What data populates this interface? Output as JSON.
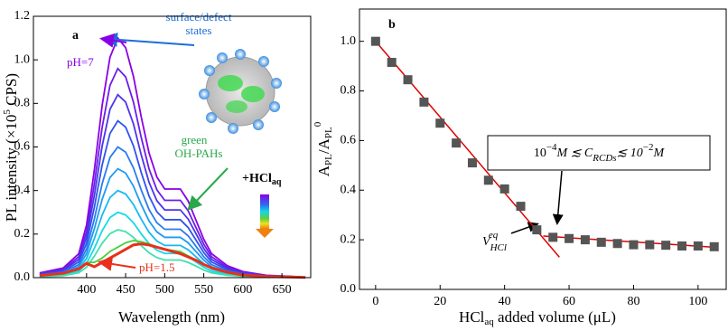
{
  "chart_data": [
    {
      "type": "line",
      "panel_label": "a",
      "ylabel": {
        "text": "PL intensity (×10",
        "sup": "5",
        "tail": " CPS)"
      },
      "xlabel": "Wavelength (nm)",
      "xlim": [
        332,
        688
      ],
      "xticks": [
        400,
        450,
        500,
        550,
        600,
        650
      ],
      "ylim": [
        0,
        1.2
      ],
      "yticks": [
        {
          "value": 0,
          "label": "0.0"
        },
        0.2,
        0.4,
        0.6,
        0.8,
        {
          "value": 1,
          "label": "1.0"
        },
        1.2
      ],
      "annotations": {
        "surface1": "surface/defect",
        "surface2": "states",
        "ph7": "pH=7",
        "green1": "green",
        "green2": "OH-PAHs",
        "hcl": "+HCl",
        "hcl_sub": "aq",
        "ph15": "pH=1.5"
      },
      "x": [
        340,
        370,
        390,
        400,
        410,
        420,
        430,
        440,
        450,
        460,
        470,
        480,
        490,
        500,
        510,
        520,
        530,
        540,
        550,
        560,
        580,
        600,
        630,
        660,
        680
      ],
      "series": [
        {
          "color": "#8a00e6",
          "values": [
            0.022,
            0.044,
            0.11,
            0.242,
            0.495,
            0.792,
            1.012,
            1.1,
            1.056,
            0.924,
            0.737,
            0.572,
            0.462,
            0.407,
            0.407,
            0.407,
            0.352,
            0.264,
            0.176,
            0.11,
            0.055,
            0.028,
            0.011,
            0.006,
            0.002
          ]
        },
        {
          "color": "#6d1de8",
          "values": [
            0.019,
            0.038,
            0.096,
            0.211,
            0.432,
            0.691,
            0.883,
            0.96,
            0.922,
            0.806,
            0.643,
            0.499,
            0.403,
            0.355,
            0.355,
            0.355,
            0.307,
            0.23,
            0.154,
            0.096,
            0.048,
            0.024,
            0.01,
            0.005,
            0.002
          ]
        },
        {
          "color": "#4c34ea",
          "values": [
            0.017,
            0.034,
            0.084,
            0.185,
            0.378,
            0.605,
            0.773,
            0.84,
            0.806,
            0.706,
            0.563,
            0.437,
            0.353,
            0.311,
            0.311,
            0.311,
            0.269,
            0.202,
            0.134,
            0.084,
            0.042,
            0.021,
            0.008,
            0.004,
            0.002
          ]
        },
        {
          "color": "#2f52ee",
          "values": [
            0.014,
            0.029,
            0.072,
            0.158,
            0.324,
            0.518,
            0.662,
            0.72,
            0.691,
            0.605,
            0.482,
            0.374,
            0.302,
            0.266,
            0.266,
            0.266,
            0.23,
            0.173,
            0.115,
            0.072,
            0.036,
            0.018,
            0.007,
            0.004,
            0.001
          ]
        },
        {
          "color": "#2a7bee",
          "values": [
            0.012,
            0.024,
            0.06,
            0.132,
            0.27,
            0.432,
            0.552,
            0.6,
            0.576,
            0.504,
            0.402,
            0.312,
            0.252,
            0.222,
            0.222,
            0.222,
            0.192,
            0.144,
            0.096,
            0.06,
            0.03,
            0.015,
            0.006,
            0.003,
            0.001
          ]
        },
        {
          "color": "#1f9af2",
          "values": [
            0.01,
            0.02,
            0.05,
            0.11,
            0.225,
            0.36,
            0.46,
            0.5,
            0.48,
            0.42,
            0.335,
            0.26,
            0.21,
            0.185,
            0.185,
            0.185,
            0.16,
            0.12,
            0.08,
            0.05,
            0.025,
            0.013,
            0.005,
            0.003,
            0.001
          ]
        },
        {
          "color": "#17b9ef",
          "values": [
            0.008,
            0.016,
            0.04,
            0.088,
            0.18,
            0.288,
            0.368,
            0.4,
            0.384,
            0.336,
            0.268,
            0.208,
            0.168,
            0.148,
            0.148,
            0.148,
            0.128,
            0.096,
            0.064,
            0.04,
            0.02,
            0.01,
            0.004,
            0.002,
            0.001
          ]
        },
        {
          "color": "#16d8e4",
          "values": [
            0.006,
            0.012,
            0.03,
            0.066,
            0.135,
            0.216,
            0.276,
            0.3,
            0.288,
            0.252,
            0.201,
            0.156,
            0.126,
            0.111,
            0.111,
            0.111,
            0.096,
            0.072,
            0.048,
            0.03,
            0.015,
            0.008,
            0.003,
            0.002,
            0.001
          ]
        },
        {
          "color": "#3fe0b0",
          "values": [
            0.004,
            0.009,
            0.022,
            0.048,
            0.099,
            0.158,
            0.202,
            0.22,
            0.211,
            0.185,
            0.147,
            0.114,
            0.092,
            0.081,
            0.081,
            0.081,
            0.07,
            0.053,
            0.035,
            0.022,
            0.011,
            0.006,
            0.002,
            0.001,
            0
          ]
        },
        {
          "color": "#4ccd3c",
          "values": [
            0.01,
            0.02,
            0.04,
            0.07,
            0.07,
            0.09,
            0.12,
            0.14,
            0.16,
            0.17,
            0.165,
            0.155,
            0.14,
            0.13,
            0.125,
            0.12,
            0.1,
            0.08,
            0.06,
            0.045,
            0.025,
            0.012,
            0.005,
            0.003,
            0.001
          ]
        },
        {
          "color": "#e8301a",
          "values": [
            0.01,
            0.02,
            0.04,
            0.065,
            0.05,
            0.07,
            0.09,
            0.11,
            0.13,
            0.15,
            0.155,
            0.15,
            0.14,
            0.13,
            0.12,
            0.11,
            0.095,
            0.08,
            0.06,
            0.045,
            0.025,
            0.012,
            0.005,
            0.003,
            0.001
          ]
        }
      ]
    },
    {
      "type": "scatter",
      "panel_label": "b",
      "ylabel": {
        "a": "A",
        "sub1": "PL",
        "slash": "/A",
        "sub2": "PL",
        "sup": "0"
      },
      "xlabel": {
        "a": "HCl",
        "sub": "aq",
        "tail": " added volume (μL)"
      },
      "xlim": [
        -5,
        109
      ],
      "xticks": [
        0,
        20,
        40,
        60,
        80,
        100
      ],
      "ylim": [
        0,
        1.13
      ],
      "yticks": [
        {
          "value": 0,
          "label": "0.0"
        },
        0.2,
        0.4,
        0.6,
        0.8,
        {
          "value": 1,
          "label": "1.0"
        }
      ],
      "color": "#555555",
      "x": [
        0,
        5,
        10,
        15,
        20,
        25,
        30,
        35,
        40,
        45,
        50,
        55,
        60,
        65,
        70,
        75,
        80,
        85,
        90,
        95,
        100,
        105
      ],
      "values": [
        1.0,
        0.915,
        0.845,
        0.755,
        0.67,
        0.59,
        0.51,
        0.44,
        0.405,
        0.335,
        0.24,
        0.21,
        0.205,
        0.2,
        0.19,
        0.185,
        0.18,
        0.18,
        0.178,
        0.175,
        0.175,
        0.172
      ],
      "fit_color": "#e00000",
      "fit_lines": [
        {
          "x": [
            0,
            57
          ],
          "y": [
            1.0,
            0.13
          ]
        },
        {
          "x": [
            52,
            105
          ],
          "y": [
            0.215,
            0.17
          ]
        }
      ],
      "range_box": [
        "10",
        "−4",
        "M ≲ C",
        "RCDs",
        "≲ 10",
        "−2",
        "M"
      ],
      "veq": {
        "v": "V",
        "sub": "HCl",
        "sup": "eq"
      }
    }
  ]
}
